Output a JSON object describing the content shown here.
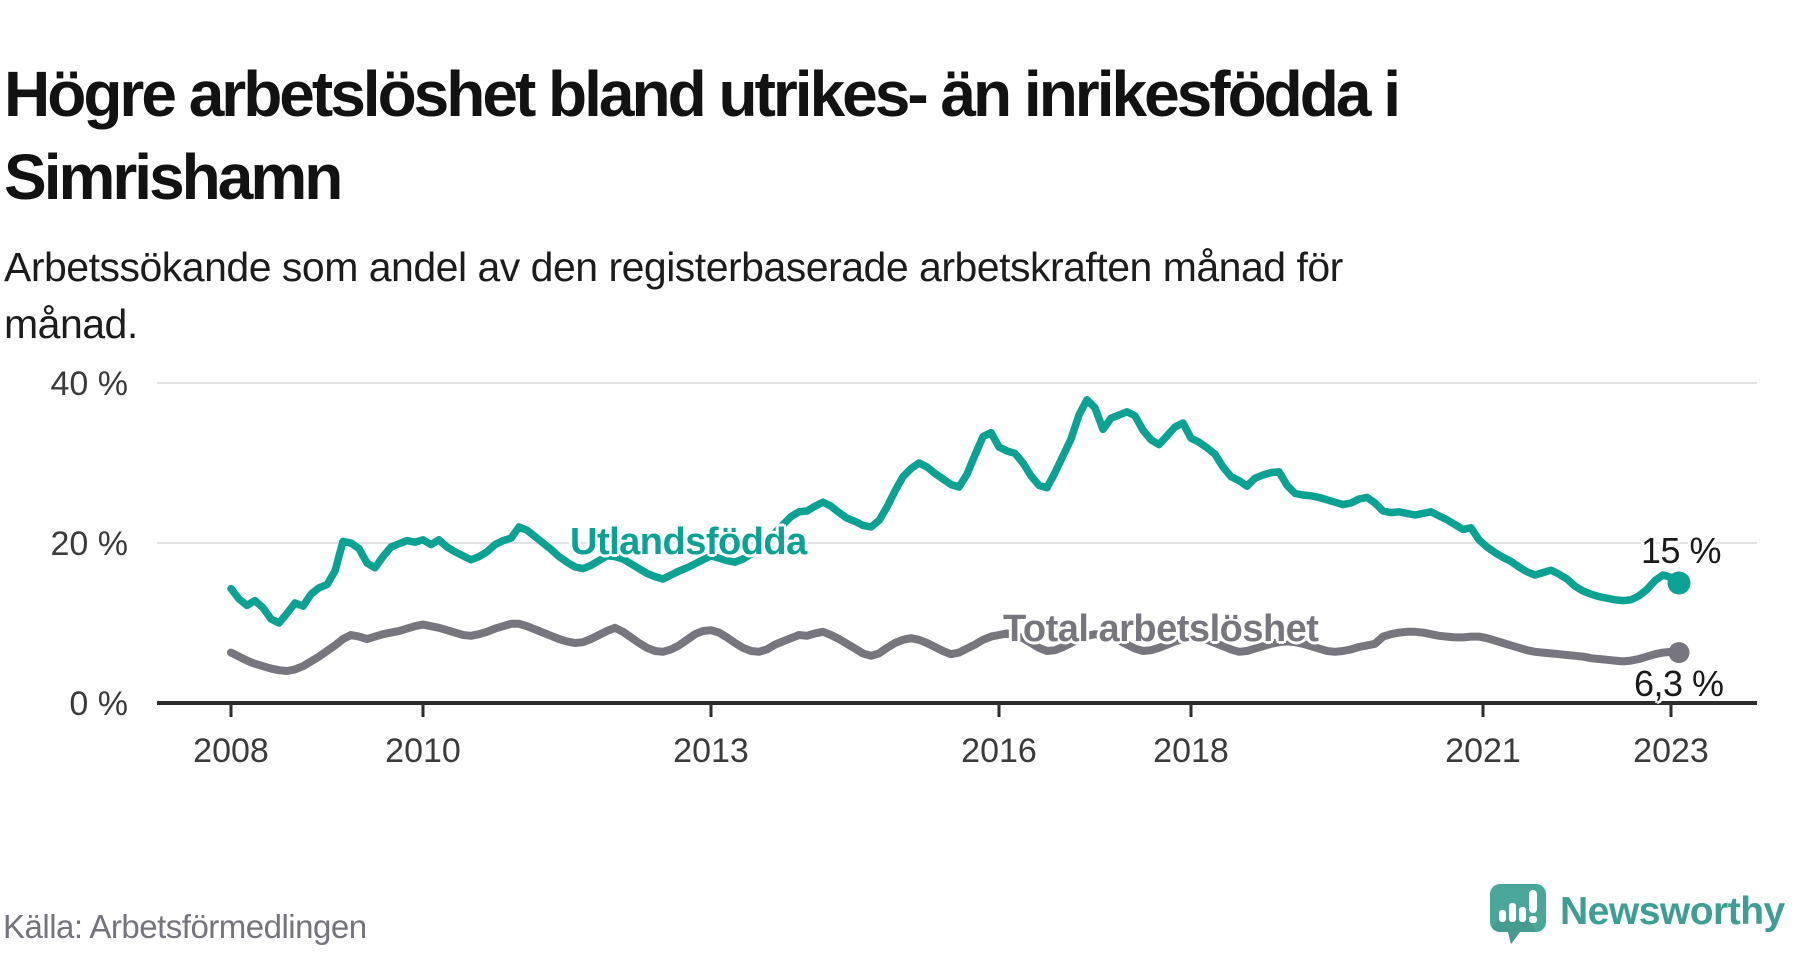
{
  "header": {
    "title": "Högre arbetslöshet bland utrikes- än inrikesfödda i\nSimrishamn",
    "subtitle": "Arbetssökande som andel av den registerbaserade arbetskraften månad för\nmånad."
  },
  "footer": {
    "source": "Källa: Arbetsförmedlingen",
    "brand": "Newsworthy"
  },
  "colors": {
    "foreign_born_line": "#0ba193",
    "total_line": "#77767e",
    "axis": "#2d2d2d",
    "axis_text": "#3b3b3b",
    "gridline": "#e3e3e3",
    "title_text": "#121212",
    "source_text": "#75747c",
    "brand_teal": "#4ca79b"
  },
  "chart_data": {
    "type": "line",
    "title": "Högre arbetslöshet bland utrikes- än inrikesfödda i Simrishamn",
    "subtitle": "Arbetssökande som andel av den registerbaserade arbetskraften månad för månad.",
    "x_unit": "month",
    "x_start": "2008-01",
    "x_end": "2023-02",
    "ylim": [
      0,
      42
    ],
    "grid": "horizontal",
    "legend": "inline-labels",
    "y_ticks": [
      {
        "value": 0,
        "label": "0 %"
      },
      {
        "value": 20,
        "label": "20 %"
      },
      {
        "value": 40,
        "label": "40 %"
      }
    ],
    "x_ticks": [
      {
        "year": 2008,
        "label": "2008"
      },
      {
        "year": 2010,
        "label": "2010"
      },
      {
        "year": 2013,
        "label": "2013"
      },
      {
        "year": 2016,
        "label": "2016"
      },
      {
        "year": 2018,
        "label": "2018"
      },
      {
        "year": 2021,
        "label": "2021"
      },
      {
        "year": 2023,
        "label": "2023"
      }
    ],
    "series": [
      {
        "name": "Utlandsfödda",
        "color": "#0ba193",
        "end_label": "15 %",
        "end_value": 15.0,
        "values": [
          14.3,
          13.0,
          12.2,
          12.8,
          11.9,
          10.5,
          10.0,
          11.2,
          12.5,
          12.1,
          13.6,
          14.4,
          14.8,
          16.5,
          20.2,
          20.0,
          19.3,
          17.5,
          16.9,
          18.3,
          19.5,
          19.9,
          20.3,
          20.1,
          20.4,
          19.8,
          20.4,
          19.5,
          18.9,
          18.4,
          17.9,
          18.3,
          18.9,
          19.8,
          20.3,
          20.6,
          22.0,
          21.6,
          20.8,
          20.0,
          19.2,
          18.3,
          17.6,
          17.0,
          16.8,
          17.2,
          17.8,
          18.4,
          18.3,
          18.0,
          17.4,
          16.8,
          16.2,
          15.8,
          15.5,
          16.0,
          16.5,
          16.9,
          17.4,
          17.9,
          18.4,
          18.1,
          17.8,
          17.6,
          18.0,
          18.6,
          19.4,
          20.3,
          21.3,
          22.3,
          23.3,
          23.9,
          24.0,
          24.6,
          25.1,
          24.6,
          23.8,
          23.1,
          22.7,
          22.2,
          22.0,
          22.8,
          24.5,
          26.5,
          28.3,
          29.3,
          30.0,
          29.5,
          28.7,
          28.0,
          27.3,
          27.0,
          28.6,
          31.0,
          33.3,
          33.8,
          32.0,
          31.5,
          31.2,
          30.0,
          28.4,
          27.2,
          26.9,
          28.8,
          30.9,
          33.0,
          36.0,
          37.9,
          36.9,
          34.2,
          35.6,
          36.0,
          36.4,
          35.9,
          34.1,
          32.9,
          32.3,
          33.4,
          34.5,
          35.0,
          33.1,
          32.6,
          31.9,
          31.1,
          29.5,
          28.3,
          27.8,
          27.1,
          28.1,
          28.5,
          28.8,
          28.9,
          27.2,
          26.2,
          26.0,
          25.9,
          25.7,
          25.4,
          25.1,
          24.8,
          25.0,
          25.5,
          25.7,
          25.0,
          24.0,
          23.8,
          23.9,
          23.7,
          23.5,
          23.7,
          23.9,
          23.4,
          22.9,
          22.3,
          21.7,
          21.9,
          20.4,
          19.5,
          18.8,
          18.2,
          17.7,
          17.0,
          16.4,
          16.0,
          16.3,
          16.6,
          16.1,
          15.5,
          14.6,
          14.0,
          13.6,
          13.3,
          13.1,
          12.9,
          12.8,
          12.9,
          13.4,
          14.2,
          15.3,
          16.0,
          15.7,
          15.0
        ]
      },
      {
        "name": "Total arbetslöshet",
        "color": "#77767e",
        "end_label": "6,3 %",
        "end_value": 6.3,
        "values": [
          6.3,
          5.8,
          5.3,
          4.9,
          4.6,
          4.3,
          4.1,
          4.0,
          4.2,
          4.6,
          5.2,
          5.8,
          6.5,
          7.2,
          8.0,
          8.5,
          8.3,
          8.0,
          8.3,
          8.6,
          8.8,
          9.0,
          9.3,
          9.6,
          9.8,
          9.6,
          9.4,
          9.1,
          8.8,
          8.5,
          8.4,
          8.6,
          8.9,
          9.3,
          9.6,
          9.9,
          9.9,
          9.6,
          9.2,
          8.8,
          8.4,
          8.0,
          7.7,
          7.5,
          7.6,
          8.0,
          8.5,
          9.0,
          9.4,
          8.9,
          8.2,
          7.5,
          6.9,
          6.5,
          6.4,
          6.7,
          7.2,
          7.9,
          8.6,
          9.0,
          9.1,
          8.8,
          8.2,
          7.5,
          6.9,
          6.5,
          6.4,
          6.7,
          7.3,
          7.7,
          8.1,
          8.5,
          8.4,
          8.7,
          8.9,
          8.5,
          8.0,
          7.4,
          6.8,
          6.2,
          5.9,
          6.2,
          6.9,
          7.5,
          7.9,
          8.1,
          7.9,
          7.5,
          7.0,
          6.5,
          6.1,
          6.3,
          6.8,
          7.3,
          7.9,
          8.3,
          8.5,
          8.7,
          8.5,
          8.1,
          7.5,
          6.9,
          6.5,
          6.6,
          7.0,
          7.5,
          8.0,
          8.4,
          8.6,
          8.5,
          8.2,
          7.8,
          7.3,
          6.8,
          6.5,
          6.6,
          6.9,
          7.3,
          7.7,
          8.0,
          8.2,
          8.1,
          7.9,
          7.5,
          7.1,
          6.7,
          6.4,
          6.5,
          6.8,
          7.1,
          7.4,
          7.6,
          7.7,
          7.6,
          7.4,
          7.1,
          6.8,
          6.5,
          6.4,
          6.5,
          6.7,
          7.0,
          7.2,
          7.4,
          8.3,
          8.6,
          8.8,
          8.9,
          8.9,
          8.8,
          8.6,
          8.4,
          8.3,
          8.2,
          8.2,
          8.3,
          8.3,
          8.1,
          7.8,
          7.5,
          7.2,
          6.9,
          6.6,
          6.4,
          6.3,
          6.2,
          6.1,
          6.0,
          5.9,
          5.8,
          5.6,
          5.5,
          5.4,
          5.3,
          5.2,
          5.3,
          5.5,
          5.8,
          6.1,
          6.3,
          6.4,
          6.3
        ]
      }
    ]
  }
}
